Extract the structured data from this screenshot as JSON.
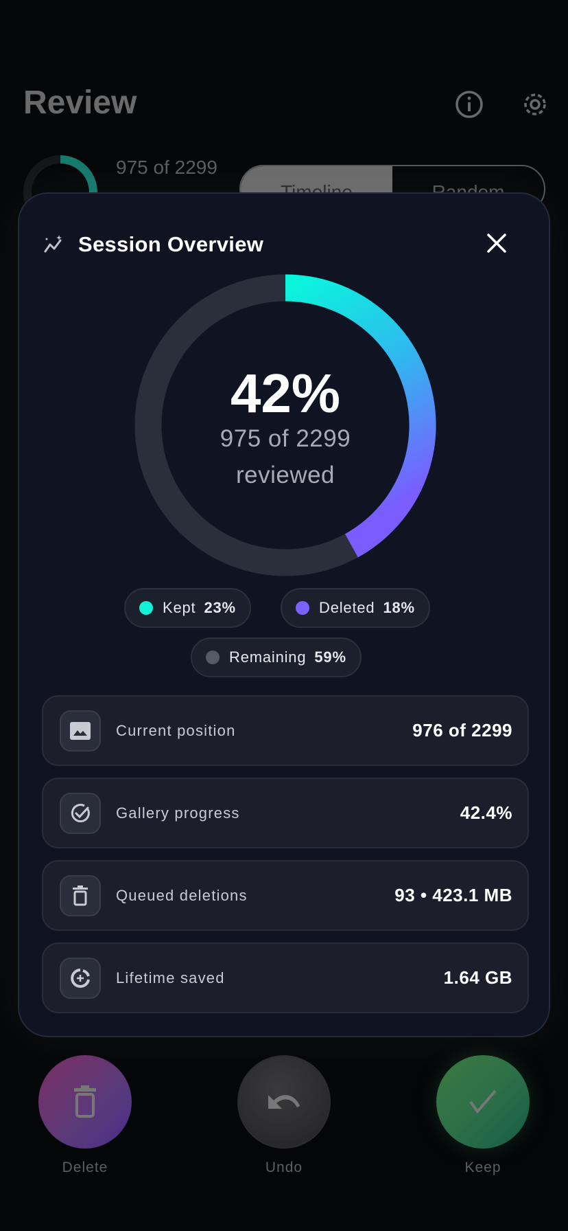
{
  "background": {
    "title": "Review",
    "progress_text": "975 of 2299",
    "progress_fraction": 0.42,
    "mode_tabs": [
      {
        "label": "Timeline",
        "selected": true
      },
      {
        "label": "Random",
        "selected": false
      }
    ]
  },
  "modal": {
    "title": "Session Overview",
    "percent": "42%",
    "progress_fraction": 0.42,
    "reviewed_count": "975 of 2299",
    "reviewed_label": "reviewed",
    "legend": [
      {
        "label": "Kept",
        "value": "23%",
        "color": "#12f0d8"
      },
      {
        "label": "Deleted",
        "value": "18%",
        "color": "#7b61ff"
      },
      {
        "label": "Remaining",
        "value": "59%",
        "color": "#555a66"
      }
    ],
    "stats": [
      {
        "label": "Current position",
        "value": "976 of 2299",
        "icon": "image-icon"
      },
      {
        "label": "Gallery progress",
        "value": "42.4%",
        "icon": "check-circle-icon"
      },
      {
        "label": "Queued deletions",
        "value": "93 • 423.1 MB",
        "icon": "trash-icon"
      },
      {
        "label": "Lifetime saved",
        "value": "1.64 GB",
        "icon": "storage-saved-icon"
      }
    ]
  },
  "actions": {
    "delete": "Delete",
    "undo": "Undo",
    "keep": "Keep"
  }
}
